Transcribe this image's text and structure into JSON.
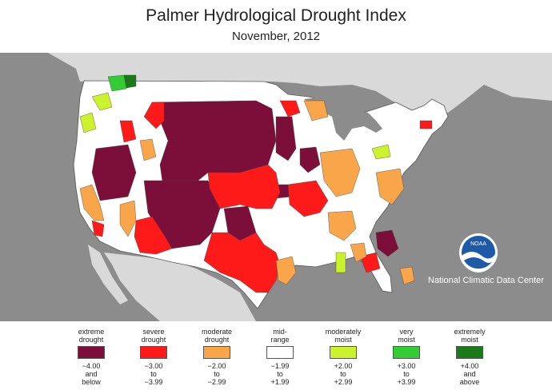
{
  "title": "Palmer Hydrological Drought Index",
  "subtitle": "November, 2012",
  "logo": {
    "text": "NOAA",
    "org": "National Climatic Data Center"
  },
  "colors": {
    "background": "#8c8c8c",
    "land": "#ffffff",
    "neighbor_land": "#d9d9d9",
    "water": "#8c8c8c",
    "noaa_blue": "#1d5aa8"
  },
  "legend": [
    {
      "label": "extreme\ndrought",
      "color": "#7b0f3a",
      "range_top": "−4.00",
      "range_mid": "and",
      "range_bot": "below"
    },
    {
      "label": "severe\ndrought",
      "color": "#ff1a1a",
      "range_top": "−3.00",
      "range_mid": "to",
      "range_bot": "−3.99"
    },
    {
      "label": "moderate\ndrought",
      "color": "#f9a64b",
      "range_top": "−2.00",
      "range_mid": "to",
      "range_bot": "−2.99"
    },
    {
      "label": "mid-\nrange",
      "color": "#ffffff",
      "range_top": "−1.99",
      "range_mid": "to",
      "range_bot": "+1.99"
    },
    {
      "label": "moderately\nmoist",
      "color": "#ccf22e",
      "range_top": "+2.00",
      "range_mid": "to",
      "range_bot": "+2.99"
    },
    {
      "label": "very\nmoist",
      "color": "#33cc33",
      "range_top": "+3.00",
      "range_mid": "to",
      "range_bot": "+3.99"
    },
    {
      "label": "extremely\nmoist",
      "color": "#1a7a1a",
      "range_top": "+4.00",
      "range_mid": "and",
      "range_bot": "above"
    }
  ]
}
